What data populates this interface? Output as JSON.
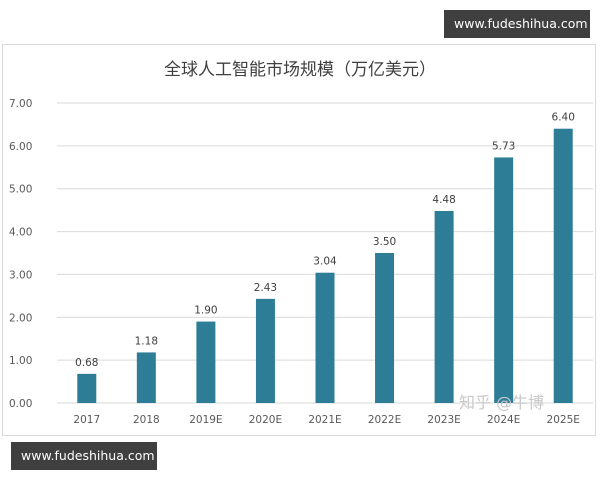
{
  "badges": {
    "top": "www.fudeshihua.com",
    "bottom": "www.fudeshihua.com"
  },
  "watermark": "知乎 @牛博",
  "colors": {
    "bar": "#2e7d97",
    "grid": "#d9d9d9",
    "badge_bg": "#3f3f3f"
  },
  "chart_data": {
    "type": "bar",
    "title": "全球人工智能市场规模（万亿美元）",
    "xlabel": "",
    "ylabel": "",
    "categories": [
      "2017",
      "2018",
      "2019E",
      "2020E",
      "2021E",
      "2022E",
      "2023E",
      "2024E",
      "2025E"
    ],
    "values": [
      0.68,
      1.18,
      1.9,
      2.43,
      3.04,
      3.5,
      4.48,
      5.73,
      6.4
    ],
    "value_labels": [
      "0.68",
      "1.18",
      "1.90",
      "2.43",
      "3.04",
      "3.50",
      "4.48",
      "5.73",
      "6.40"
    ],
    "y_ticks": [
      "0.00",
      "1.00",
      "2.00",
      "3.00",
      "4.00",
      "5.00",
      "6.00",
      "7.00"
    ],
    "ylim": [
      0,
      7
    ],
    "grid": true,
    "legend": "none"
  }
}
